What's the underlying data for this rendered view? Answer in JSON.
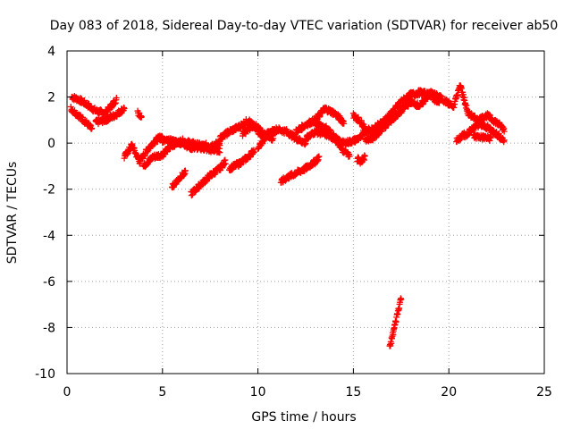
{
  "chart_data": {
    "type": "scatter",
    "title": "Day 083 of 2018, Sidereal Day-to-day VTEC variation (SDTVAR) for receiver ab50",
    "xlabel": "GPS time / hours",
    "ylabel": "SDTVAR / TECUs",
    "xlim": [
      0,
      25
    ],
    "ylim": [
      -10,
      4
    ],
    "xticks": [
      0,
      5,
      10,
      15,
      20,
      25
    ],
    "yticks": [
      -10,
      -8,
      -6,
      -4,
      -2,
      0,
      2,
      4
    ],
    "xtick_labels": [
      "0",
      "5",
      "10",
      "15",
      "20",
      "25"
    ],
    "ytick_labels": [
      "-10",
      "-8",
      "-6",
      "-4",
      "-2",
      "0",
      "2",
      "4"
    ],
    "grid": true,
    "marker": "+",
    "color": "#ff0000",
    "series": [
      {
        "name": "SDTVAR",
        "tracks": [
          {
            "t0": 0.25,
            "t1": 2.6,
            "pts": [
              [
                0.25,
                2.0
              ],
              [
                0.6,
                1.9
              ],
              [
                1.0,
                1.7
              ],
              [
                1.5,
                1.4
              ],
              [
                2.0,
                1.3
              ],
              [
                2.6,
                1.9
              ]
            ]
          },
          {
            "t0": 0.2,
            "t1": 1.3,
            "pts": [
              [
                0.2,
                1.5
              ],
              [
                0.6,
                1.2
              ],
              [
                1.0,
                0.9
              ],
              [
                1.3,
                0.6
              ]
            ]
          },
          {
            "t0": 1.5,
            "t1": 3.0,
            "pts": [
              [
                1.5,
                0.9
              ],
              [
                2.0,
                1.0
              ],
              [
                2.5,
                1.2
              ],
              [
                3.0,
                1.5
              ]
            ]
          },
          {
            "t0": 3.0,
            "t1": 5.0,
            "pts": [
              [
                3.0,
                -0.6
              ],
              [
                3.4,
                -0.1
              ],
              [
                3.8,
                -0.8
              ],
              [
                4.2,
                -0.3
              ],
              [
                4.6,
                0.1
              ],
              [
                5.0,
                0.3
              ]
            ]
          },
          {
            "t0": 3.7,
            "t1": 3.9,
            "pts": [
              [
                3.7,
                1.3
              ],
              [
                3.9,
                1.2
              ]
            ]
          },
          {
            "t0": 4.0,
            "t1": 8.0,
            "pts": [
              [
                4.0,
                -1.0
              ],
              [
                4.5,
                -0.6
              ],
              [
                5.0,
                -0.5
              ],
              [
                5.5,
                -0.1
              ],
              [
                6.0,
                0.1
              ],
              [
                6.5,
                0.0
              ],
              [
                7.0,
                -0.1
              ],
              [
                7.5,
                -0.1
              ],
              [
                8.0,
                0.0
              ]
            ]
          },
          {
            "t0": 5.0,
            "t1": 8.0,
            "pts": [
              [
                5.0,
                0.1
              ],
              [
                5.5,
                0.1
              ],
              [
                6.0,
                0.0
              ],
              [
                6.5,
                -0.2
              ],
              [
                7.0,
                -0.2
              ],
              [
                7.5,
                -0.3
              ],
              [
                8.0,
                -0.3
              ]
            ]
          },
          {
            "t0": 5.5,
            "t1": 6.2,
            "pts": [
              [
                5.5,
                -1.9
              ],
              [
                6.0,
                -1.4
              ],
              [
                6.2,
                -1.3
              ]
            ]
          },
          {
            "t0": 6.5,
            "t1": 8.3,
            "pts": [
              [
                6.5,
                -2.2
              ],
              [
                7.0,
                -1.8
              ],
              [
                7.5,
                -1.4
              ],
              [
                8.0,
                -1.1
              ],
              [
                8.3,
                -0.8
              ]
            ]
          },
          {
            "t0": 8.5,
            "t1": 9.8,
            "pts": [
              [
                8.5,
                -1.1
              ],
              [
                9.0,
                -0.9
              ],
              [
                9.5,
                -0.6
              ],
              [
                9.8,
                -0.3
              ]
            ]
          },
          {
            "t0": 8.0,
            "t1": 10.5,
            "pts": [
              [
                8.0,
                0.2
              ],
              [
                8.5,
                0.5
              ],
              [
                9.0,
                0.7
              ],
              [
                9.5,
                1.0
              ],
              [
                10.0,
                0.5
              ],
              [
                10.5,
                0.3
              ]
            ]
          },
          {
            "t0": 9.2,
            "t1": 10.8,
            "pts": [
              [
                9.2,
                0.4
              ],
              [
                9.8,
                0.8
              ],
              [
                10.3,
                0.4
              ],
              [
                10.8,
                0.2
              ]
            ]
          },
          {
            "t0": 10.0,
            "t1": 12.5,
            "pts": [
              [
                10.0,
                -0.2
              ],
              [
                10.5,
                0.4
              ],
              [
                11.0,
                0.6
              ],
              [
                11.5,
                0.5
              ],
              [
                12.0,
                0.2
              ],
              [
                12.5,
                0.0
              ]
            ]
          },
          {
            "t0": 11.2,
            "t1": 13.2,
            "pts": [
              [
                11.2,
                -1.7
              ],
              [
                11.5,
                -1.5
              ],
              [
                12.0,
                -1.3
              ],
              [
                12.5,
                -1.1
              ],
              [
                13.0,
                -0.8
              ],
              [
                13.2,
                -0.6
              ]
            ]
          },
          {
            "t0": 12.0,
            "t1": 14.5,
            "pts": [
              [
                12.0,
                0.5
              ],
              [
                12.5,
                0.8
              ],
              [
                13.0,
                1.0
              ],
              [
                13.5,
                1.5
              ],
              [
                14.0,
                1.3
              ],
              [
                14.5,
                0.9
              ]
            ]
          },
          {
            "t0": 12.5,
            "t1": 15.5,
            "pts": [
              [
                12.5,
                0.2
              ],
              [
                13.0,
                0.5
              ],
              [
                13.5,
                0.4
              ],
              [
                14.0,
                0.2
              ],
              [
                14.5,
                0.0
              ],
              [
                15.0,
                0.1
              ],
              [
                15.5,
                0.3
              ]
            ]
          },
          {
            "t0": 13.0,
            "t1": 14.8,
            "pts": [
              [
                13.0,
                0.9
              ],
              [
                13.5,
                0.7
              ],
              [
                14.0,
                0.3
              ],
              [
                14.5,
                -0.4
              ],
              [
                14.8,
                -0.5
              ]
            ]
          },
          {
            "t0": 15.0,
            "t1": 15.6,
            "pts": [
              [
                15.0,
                1.2
              ],
              [
                15.3,
                1.0
              ],
              [
                15.6,
                0.7
              ]
            ]
          },
          {
            "t0": 15.2,
            "t1": 15.6,
            "pts": [
              [
                15.2,
                -0.7
              ],
              [
                15.4,
                -0.8
              ],
              [
                15.6,
                -0.6
              ]
            ]
          },
          {
            "t0": 15.5,
            "t1": 19.5,
            "pts": [
              [
                15.5,
                0.5
              ],
              [
                16.0,
                0.6
              ],
              [
                16.5,
                0.9
              ],
              [
                17.0,
                1.3
              ],
              [
                17.5,
                1.8
              ],
              [
                18.0,
                2.1
              ],
              [
                18.5,
                2.2
              ],
              [
                19.0,
                2.1
              ],
              [
                19.5,
                1.7
              ]
            ]
          },
          {
            "t0": 16.0,
            "t1": 17.0,
            "pts": [
              [
                16.0,
                0.4
              ],
              [
                16.5,
                0.7
              ],
              [
                17.0,
                1.2
              ]
            ]
          },
          {
            "t0": 15.6,
            "t1": 20.2,
            "pts": [
              [
                15.6,
                0.1
              ],
              [
                16.0,
                0.2
              ],
              [
                16.5,
                0.6
              ],
              [
                17.0,
                1.0
              ],
              [
                17.5,
                1.4
              ],
              [
                18.0,
                1.8
              ],
              [
                18.5,
                1.6
              ],
              [
                19.0,
                2.2
              ],
              [
                19.5,
                2.0
              ],
              [
                20.2,
                1.6
              ]
            ]
          },
          {
            "t0": 16.9,
            "t1": 17.5,
            "pts": [
              [
                16.9,
                -8.9
              ],
              [
                17.2,
                -7.8
              ],
              [
                17.5,
                -6.7
              ]
            ]
          },
          {
            "t0": 20.2,
            "t1": 22.9,
            "pts": [
              [
                20.2,
                1.5
              ],
              [
                20.6,
                2.5
              ],
              [
                21.0,
                1.3
              ],
              [
                21.5,
                1.0
              ],
              [
                22.0,
                1.2
              ],
              [
                22.5,
                0.9
              ],
              [
                22.9,
                0.6
              ]
            ]
          },
          {
            "t0": 20.8,
            "t1": 22.9,
            "pts": [
              [
                20.8,
                0.3
              ],
              [
                21.5,
                0.8
              ],
              [
                22.0,
                0.7
              ],
              [
                22.5,
                0.4
              ],
              [
                22.9,
                0.1
              ]
            ]
          },
          {
            "t0": 20.4,
            "t1": 20.8,
            "pts": [
              [
                20.4,
                0.1
              ],
              [
                20.8,
                0.4
              ]
            ]
          },
          {
            "t0": 21.3,
            "t1": 22.2,
            "pts": [
              [
                21.3,
                0.3
              ],
              [
                21.8,
                0.25
              ],
              [
                22.2,
                0.2
              ]
            ]
          }
        ]
      }
    ]
  }
}
